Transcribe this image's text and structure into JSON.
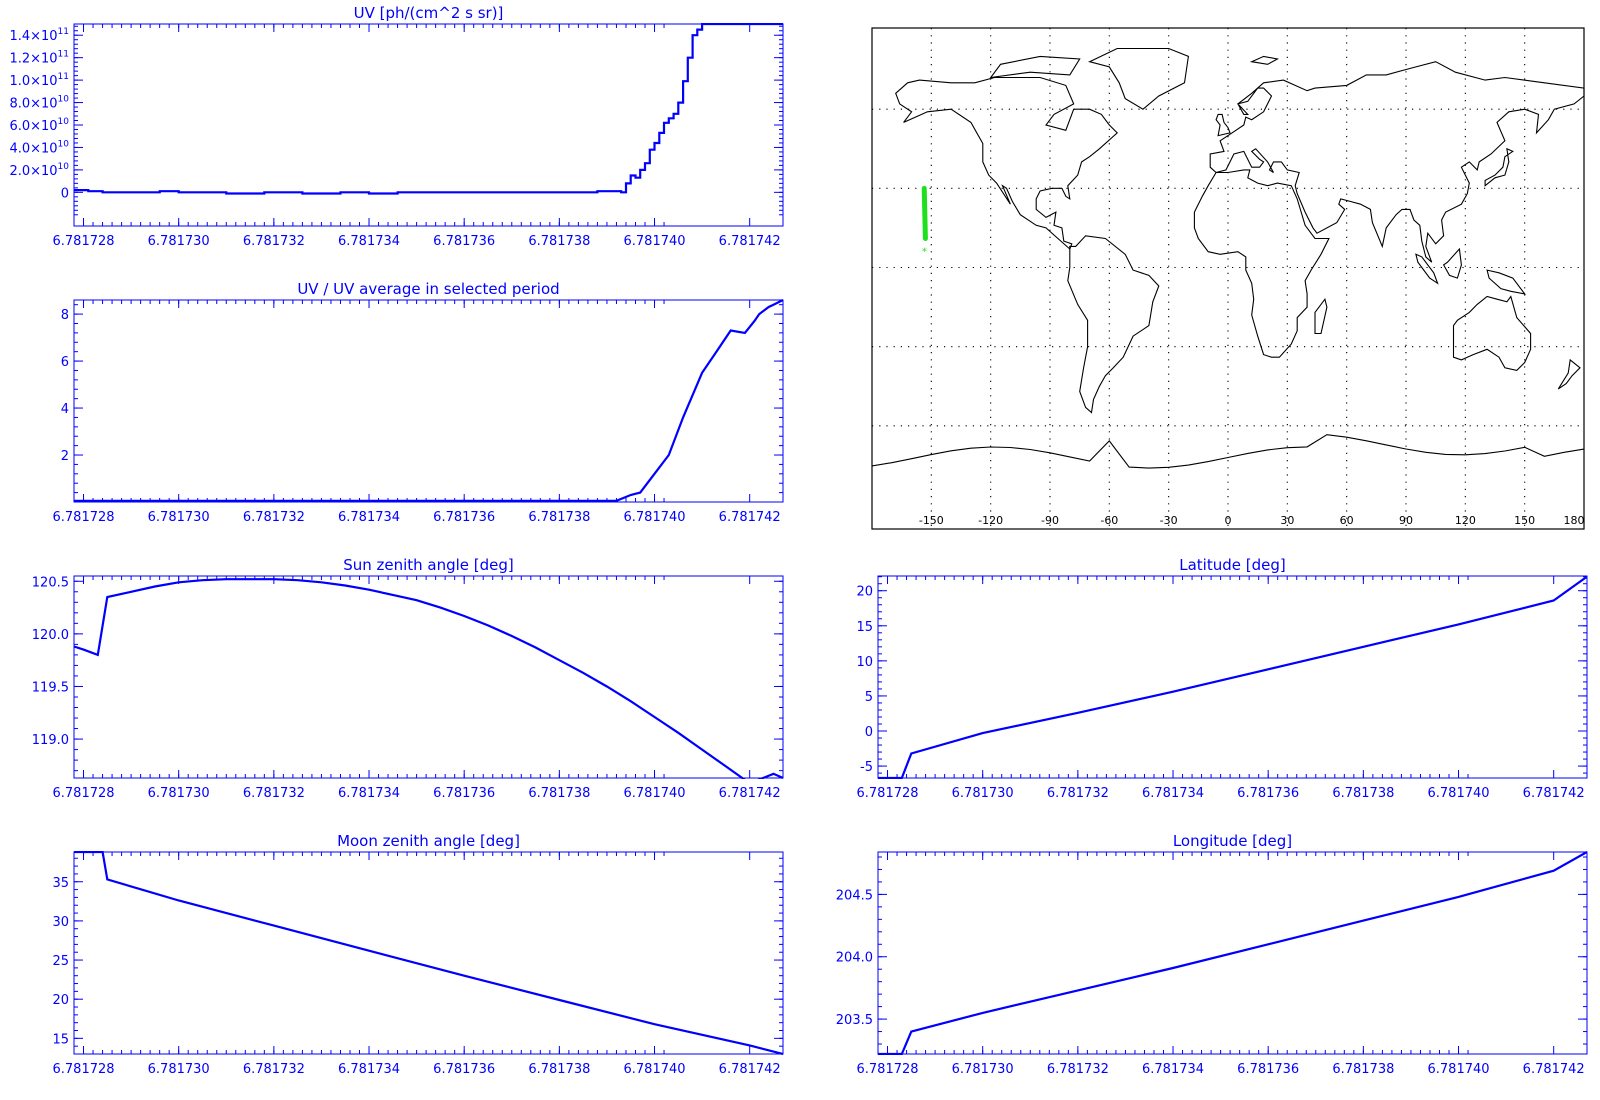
{
  "colors": {
    "plot": "#0000ff",
    "track": "#1ee01e",
    "map_line": "#000000",
    "background": "#ffffff"
  },
  "x_ticks": [
    "6.781728",
    "6.781730",
    "6.781732",
    "6.781734",
    "6.781736",
    "6.781738",
    "6.781740",
    "6.781742"
  ],
  "map": {
    "lon_ticks": [
      "-150",
      "-120",
      "-90",
      "-60",
      "-30",
      "0",
      "30",
      "60",
      "90",
      "120",
      "150",
      "180"
    ],
    "track_marker": "*",
    "track": {
      "lon": [
        -153,
        -153.6
      ],
      "lat": [
        11,
        30
      ]
    }
  },
  "chart_data": [
    {
      "id": "uv",
      "type": "line",
      "title": "UV [ph/(cm^2 s sr)]",
      "step": true,
      "xlim": [
        6.7817278,
        6.7817427
      ],
      "ylim": [
        -0.3,
        1.5
      ],
      "yscale": 100000000000.0,
      "ytick_values": [
        0,
        0.2,
        0.4,
        0.6,
        0.8,
        1.0,
        1.2,
        1.4
      ],
      "yticks": [
        {
          "m": "0",
          "e": ""
        },
        {
          "m": "2.0×10",
          "e": "10"
        },
        {
          "m": "4.0×10",
          "e": "10"
        },
        {
          "m": "6.0×10",
          "e": "10"
        },
        {
          "m": "8.0×10",
          "e": "10"
        },
        {
          "m": "1.0×10",
          "e": "11"
        },
        {
          "m": "1.2×10",
          "e": "11"
        },
        {
          "m": "1.4×10",
          "e": "11"
        }
      ],
      "x": [
        6.7817278,
        6.7817281,
        6.7817284,
        6.781729,
        6.7817296,
        6.78173,
        6.7817305,
        6.781731,
        6.7817318,
        6.7817326,
        6.7817334,
        6.781734,
        6.7817346,
        6.7817352,
        6.7817358,
        6.7817364,
        6.781737,
        6.7817376,
        6.7817382,
        6.7817388,
        6.7817393,
        6.7817394,
        6.7817395,
        6.7817396,
        6.7817397,
        6.7817398,
        6.7817399,
        6.78174,
        6.7817401,
        6.7817402,
        6.7817403,
        6.7817404,
        6.7817405,
        6.7817406,
        6.7817407,
        6.7817408,
        6.7817409,
        6.781741,
        6.7817411
      ],
      "values": [
        0.02,
        0.01,
        0.0,
        0.0,
        0.01,
        0.0,
        0.0,
        -0.01,
        0.0,
        -0.01,
        0.0,
        -0.01,
        0.0,
        0.0,
        0.0,
        0.0,
        0.0,
        0.0,
        0.0,
        0.01,
        0.0,
        0.08,
        0.15,
        0.13,
        0.2,
        0.26,
        0.38,
        0.44,
        0.53,
        0.62,
        0.66,
        0.7,
        0.8,
        0.99,
        1.2,
        1.4,
        1.45,
        1.5,
        1.5
      ]
    },
    {
      "id": "uv_ratio",
      "type": "line",
      "title": "UV / UV average in selected period",
      "xlim": [
        6.7817278,
        6.7817427
      ],
      "ylim": [
        0,
        8.6
      ],
      "ytick_values": [
        2,
        4,
        6,
        8
      ],
      "yticks": [
        "2",
        "4",
        "6",
        "8"
      ],
      "x": [
        6.7817278,
        6.781729,
        6.7817392,
        6.7817395,
        6.7817397,
        6.78174,
        6.7817403,
        6.7817406,
        6.781741,
        6.7817413,
        6.7817416,
        6.7817419,
        6.7817421,
        6.7817422,
        6.7817424,
        6.7817425,
        6.7817427
      ],
      "values": [
        0.05,
        0.05,
        0.05,
        0.3,
        0.4,
        1.2,
        2.0,
        3.6,
        5.5,
        6.4,
        7.3,
        7.2,
        7.7,
        8.0,
        8.3,
        8.4,
        8.6
      ]
    },
    {
      "id": "sun",
      "type": "line",
      "title": "Sun zenith angle [deg]",
      "xlim": [
        6.7817278,
        6.7817427
      ],
      "ylim": [
        118.63,
        120.55
      ],
      "ytick_values": [
        119.0,
        119.5,
        120.0,
        120.5
      ],
      "yticks": [
        "119.0",
        "119.5",
        "120.0",
        "120.5"
      ],
      "x": [
        6.7817278,
        6.781728,
        6.7817283,
        6.7817285,
        6.781729,
        6.7817295,
        6.78173,
        6.7817305,
        6.781731,
        6.7817315,
        6.781732,
        6.7817325,
        6.781733,
        6.7817335,
        6.781734,
        6.7817345,
        6.781735,
        6.7817355,
        6.781736,
        6.7817365,
        6.781737,
        6.7817375,
        6.781738,
        6.7817385,
        6.781739,
        6.7817395,
        6.78174,
        6.7817405,
        6.781741,
        6.7817415,
        6.781742,
        6.7817425,
        6.7817427
      ],
      "values": [
        119.88,
        119.85,
        119.8,
        120.35,
        120.4,
        120.45,
        120.49,
        120.51,
        120.52,
        120.52,
        120.52,
        120.51,
        120.49,
        120.46,
        120.42,
        120.37,
        120.32,
        120.25,
        120.17,
        120.08,
        119.98,
        119.87,
        119.75,
        119.63,
        119.5,
        119.36,
        119.21,
        119.06,
        118.9,
        118.74,
        118.58,
        118.67,
        118.63
      ]
    },
    {
      "id": "lat",
      "type": "line",
      "title": "Latitude [deg]",
      "xlim": [
        6.7817278,
        6.7817427
      ],
      "ylim": [
        -6.7,
        22.1
      ],
      "ytick_values": [
        -5,
        0,
        5,
        10,
        15,
        20
      ],
      "yticks": [
        "-5",
        "0",
        "5",
        "10",
        "15",
        "20"
      ],
      "x": [
        6.7817278,
        6.7817281,
        6.7817283,
        6.7817285,
        6.78173,
        6.781732,
        6.781734,
        6.781736,
        6.781738,
        6.78174,
        6.781742,
        6.7817427
      ],
      "values": [
        -6.7,
        -6.7,
        -6.7,
        -3.2,
        -0.3,
        2.6,
        5.6,
        8.8,
        12.0,
        15.2,
        18.6,
        22.0
      ]
    },
    {
      "id": "moon",
      "type": "line",
      "title": "Moon zenith angle [deg]",
      "xlim": [
        6.7817278,
        6.7817427
      ],
      "ylim": [
        13.0,
        38.8
      ],
      "ytick_values": [
        15,
        20,
        25,
        30,
        35
      ],
      "yticks": [
        "15",
        "20",
        "25",
        "30",
        "35"
      ],
      "x": [
        6.7817278,
        6.7817281,
        6.7817284,
        6.7817285,
        6.78173,
        6.781732,
        6.781734,
        6.781736,
        6.781738,
        6.78174,
        6.781742,
        6.7817427
      ],
      "values": [
        38.8,
        38.8,
        38.8,
        35.3,
        32.6,
        29.4,
        26.2,
        23.0,
        19.9,
        16.8,
        14.1,
        13.0
      ]
    },
    {
      "id": "lon",
      "type": "line",
      "title": "Longitude [deg]",
      "xlim": [
        6.7817278,
        6.7817427
      ],
      "ylim": [
        203.22,
        204.84
      ],
      "ytick_values": [
        203.5,
        204.0,
        204.5
      ],
      "yticks": [
        "203.5",
        "204.0",
        "204.5"
      ],
      "x": [
        6.7817278,
        6.7817281,
        6.7817283,
        6.7817285,
        6.78173,
        6.781732,
        6.781734,
        6.781736,
        6.781738,
        6.78174,
        6.781742,
        6.7817427
      ],
      "values": [
        203.22,
        203.22,
        203.22,
        203.4,
        203.55,
        203.73,
        203.91,
        204.1,
        204.29,
        204.48,
        204.69,
        204.84
      ]
    }
  ]
}
